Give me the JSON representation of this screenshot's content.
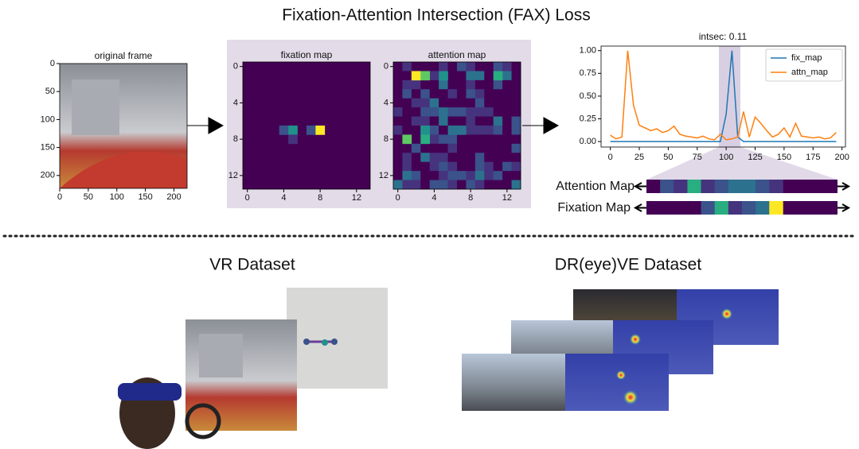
{
  "title": "Fixation-Attention Intersection (FAX) Loss",
  "original_frame": {
    "title": "original frame",
    "xticks": [
      0,
      50,
      100,
      150,
      200
    ],
    "yticks": [
      0,
      50,
      100,
      150,
      200
    ],
    "xlim": [
      0,
      223
    ],
    "ylim": [
      0,
      223
    ]
  },
  "fixation_map": {
    "title": "fixation map",
    "xticks": [
      0,
      4,
      8,
      12
    ],
    "yticks": [
      0,
      4,
      8,
      12
    ],
    "xlim": [
      -0.5,
      13.5
    ],
    "ylim": [
      -0.5,
      13.5
    ]
  },
  "attention_map": {
    "title": "attention map",
    "xticks": [
      0,
      4,
      8,
      12
    ],
    "yticks": [
      0,
      4,
      8,
      12
    ],
    "xlim": [
      -0.5,
      13.5
    ],
    "ylim": [
      -0.5,
      13.5
    ]
  },
  "plot": {
    "type": "line",
    "title": "intsec: 0.11",
    "x": [
      0,
      5,
      10,
      15,
      20,
      25,
      30,
      35,
      40,
      45,
      50,
      55,
      60,
      65,
      70,
      75,
      80,
      85,
      90,
      95,
      100,
      105,
      110,
      115,
      120,
      125,
      130,
      135,
      140,
      145,
      150,
      155,
      160,
      165,
      170,
      175,
      180,
      185,
      190,
      195
    ],
    "series": [
      {
        "name": "fix_map",
        "color": "#1f77b4",
        "values": [
          0,
          0,
          0,
          0,
          0,
          0,
          0,
          0,
          0,
          0,
          0,
          0,
          0,
          0,
          0,
          0,
          0,
          0,
          0,
          0,
          0.3,
          1.0,
          0.05,
          0,
          0,
          0,
          0,
          0,
          0,
          0,
          0,
          0,
          0,
          0,
          0,
          0,
          0,
          0,
          0,
          0
        ]
      },
      {
        "name": "attn_map",
        "color": "#ff7f0e",
        "values": [
          0.07,
          0.03,
          0.05,
          1.0,
          0.4,
          0.18,
          0.15,
          0.12,
          0.14,
          0.1,
          0.12,
          0.17,
          0.08,
          0.06,
          0.05,
          0.04,
          0.06,
          0.03,
          0.02,
          0.08,
          0.02,
          0.03,
          0.05,
          0.33,
          0.05,
          0.27,
          0.2,
          0.12,
          0.05,
          0.08,
          0.15,
          0.05,
          0.2,
          0.06,
          0.05,
          0.04,
          0.05,
          0.03,
          0.04,
          0.1
        ]
      }
    ],
    "xlim": [
      -8,
      203
    ],
    "ylim": [
      -0.06,
      1.05
    ],
    "xticks": [
      0,
      25,
      50,
      75,
      100,
      125,
      150,
      175,
      200
    ],
    "yticks": [
      {
        "value": 0,
        "label": "0.00"
      },
      {
        "value": 0.25,
        "label": "0.25"
      },
      {
        "value": 0.5,
        "label": "0.50"
      },
      {
        "value": 0.75,
        "label": "0.75"
      },
      {
        "value": 1,
        "label": "1.00"
      }
    ],
    "legend": "upper right"
  },
  "strip_labels": [
    "Attention Map",
    "Fixation Map"
  ],
  "datasets": [
    "VR Dataset",
    "DR(eye)VE Dataset"
  ]
}
